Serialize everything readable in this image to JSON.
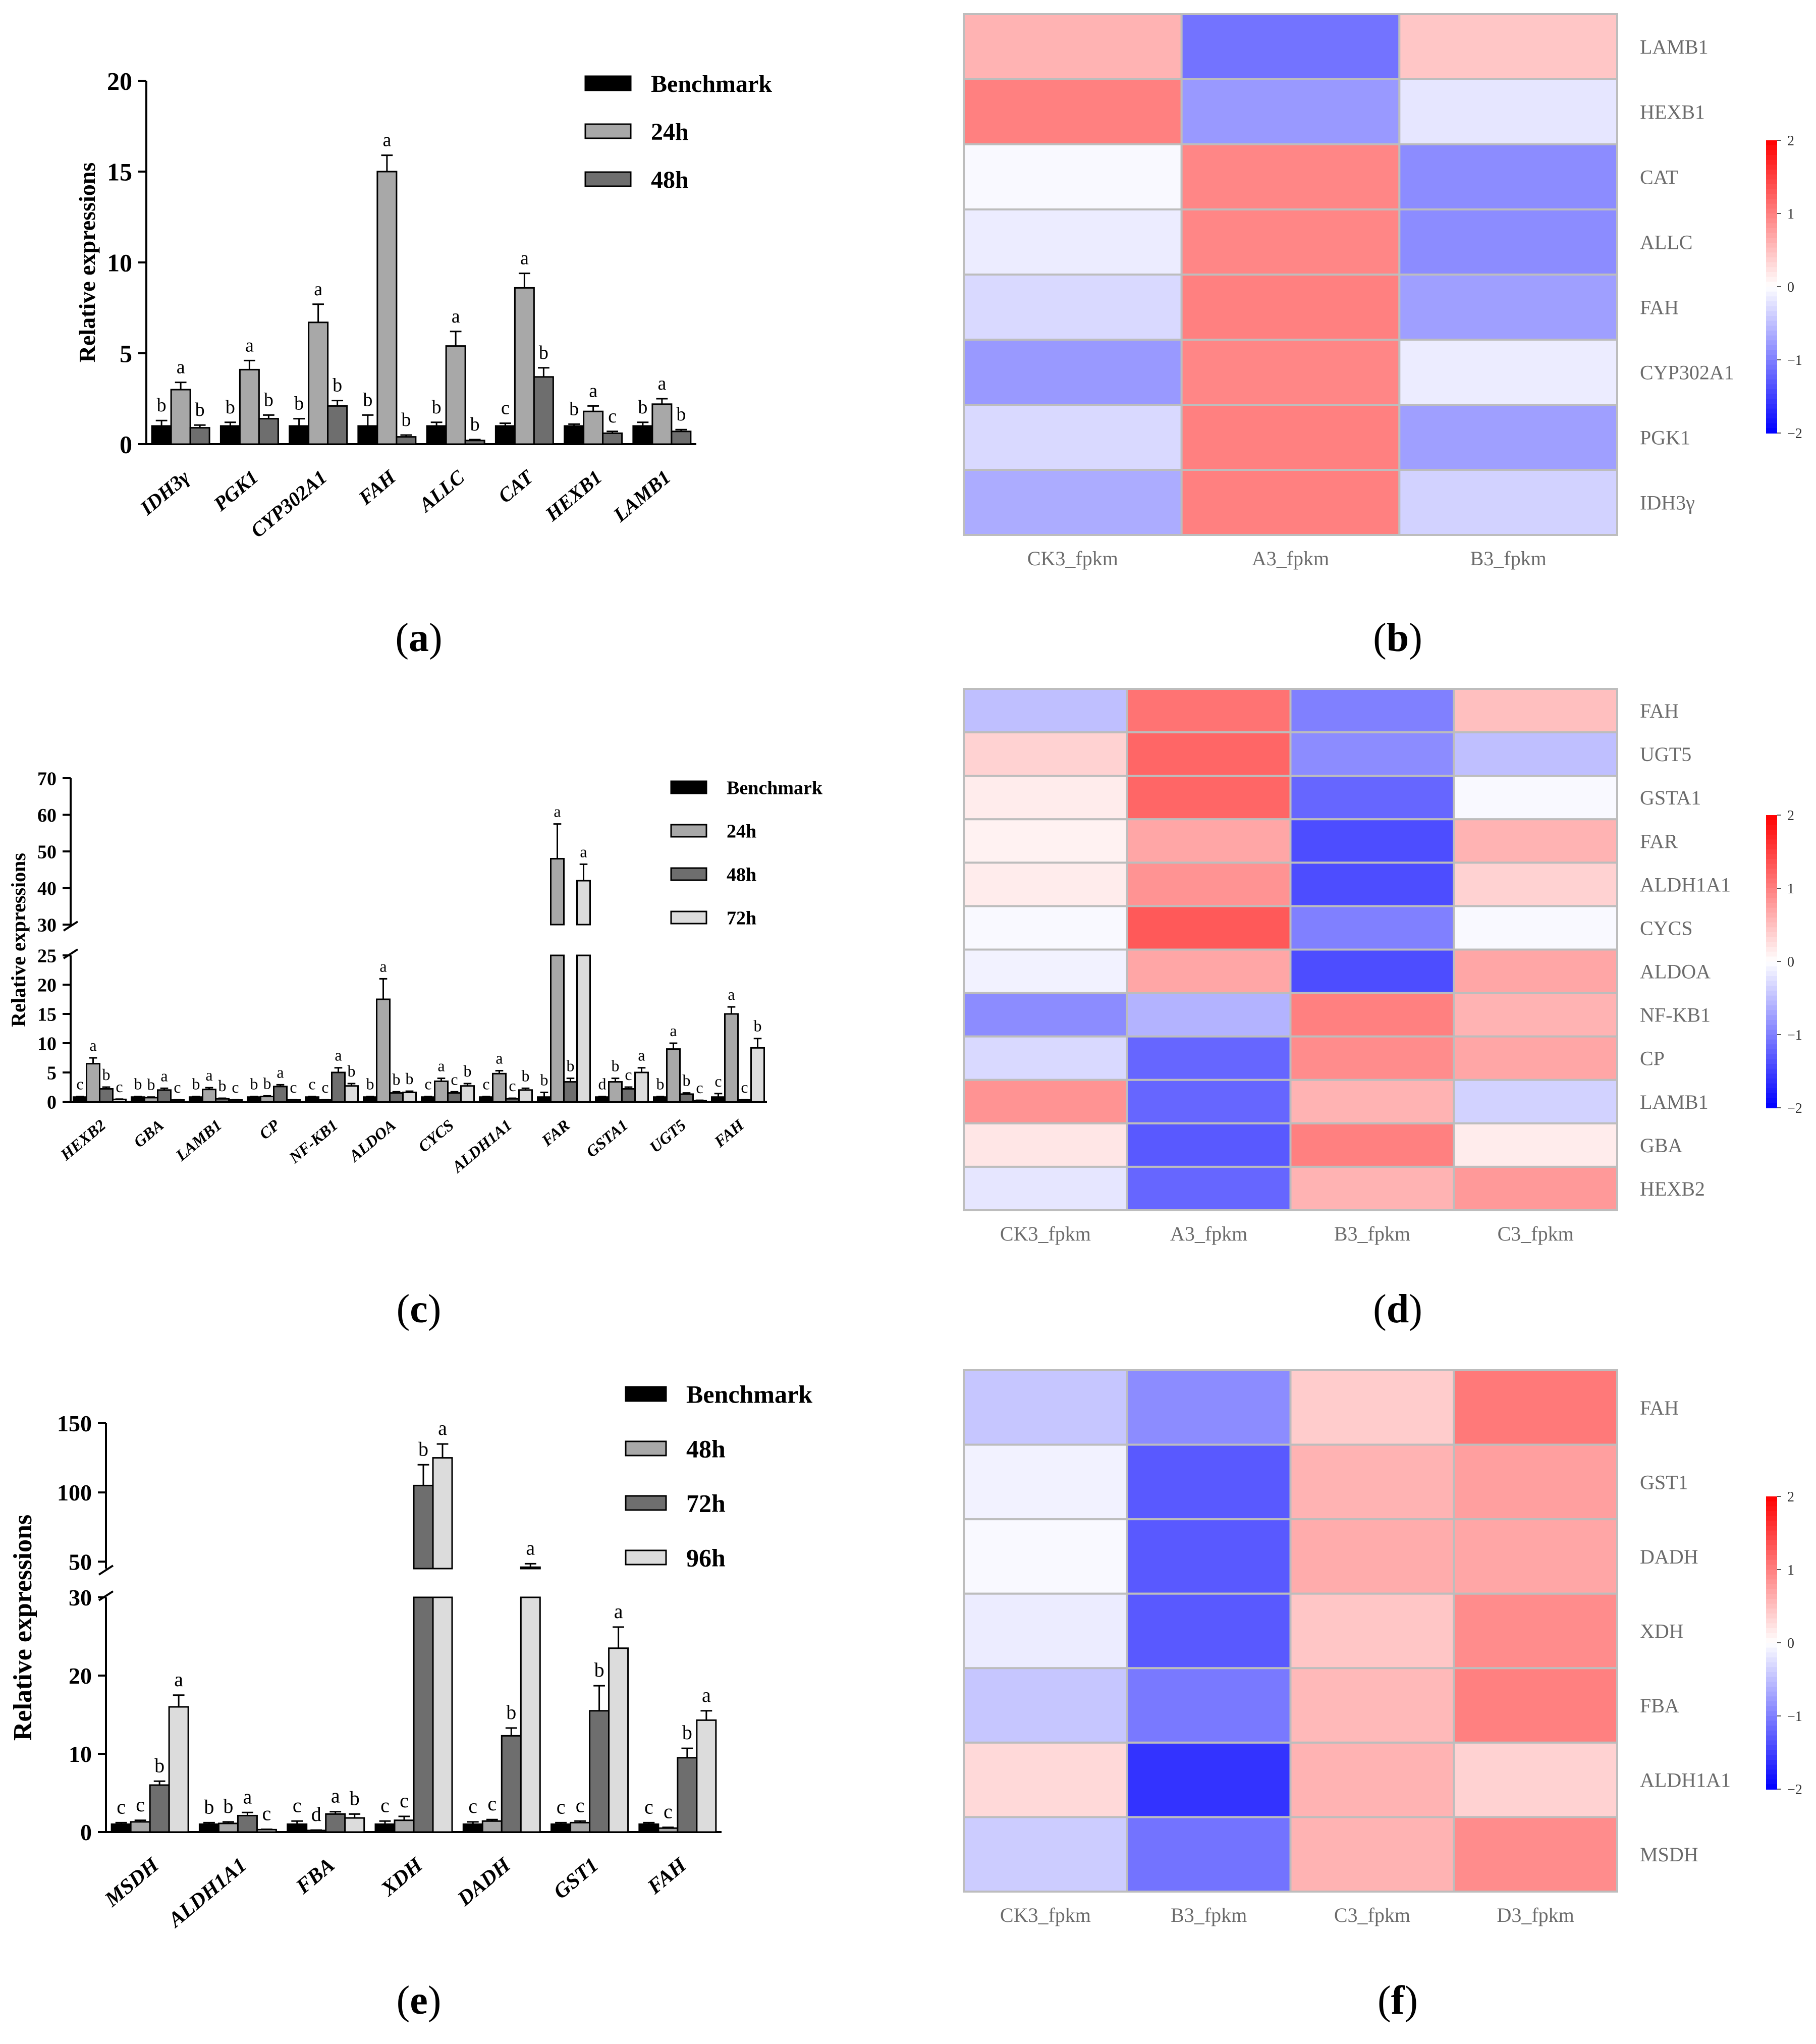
{
  "chart_data": [
    {
      "panel": "(a)",
      "type": "bar",
      "ylabel": "Relative expressions",
      "ylim": [
        0,
        20
      ],
      "yticks": [
        0,
        5,
        10,
        15,
        20
      ],
      "categories": [
        "IDH3γ",
        "PGK1",
        "CYP302A1",
        "FAH",
        "ALLC",
        "CAT",
        "HEXB1",
        "LAMB1"
      ],
      "series": [
        {
          "name": "Benchmark",
          "color": "#000000",
          "values": [
            1,
            1,
            1,
            1,
            1,
            1,
            1,
            1
          ],
          "errors": [
            0.3,
            0.2,
            0.4,
            0.6,
            0.2,
            0.15,
            0.1,
            0.2
          ],
          "letters": [
            "b",
            "b",
            "b",
            "b",
            "b",
            "c",
            "b",
            "b"
          ]
        },
        {
          "name": "24h",
          "color": "#a8a8a8",
          "values": [
            3.0,
            4.1,
            6.7,
            15.0,
            5.4,
            8.6,
            1.8,
            2.2
          ],
          "errors": [
            0.4,
            0.5,
            1.0,
            0.9,
            0.8,
            0.8,
            0.3,
            0.3
          ],
          "letters": [
            "a",
            "a",
            "a",
            "a",
            "a",
            "a",
            "a",
            "a"
          ]
        },
        {
          "name": "48h",
          "color": "#6e6e6e",
          "values": [
            0.9,
            1.4,
            2.1,
            0.4,
            0.2,
            3.7,
            0.6,
            0.7
          ],
          "errors": [
            0.15,
            0.2,
            0.3,
            0.1,
            0.05,
            0.5,
            0.1,
            0.1
          ],
          "letters": [
            "b",
            "b",
            "b",
            "b",
            "b",
            "b",
            "c",
            "b"
          ]
        }
      ],
      "label": "(a)",
      "label_letter": "a"
    },
    {
      "panel": "(b)",
      "type": "heatmap",
      "rows": [
        "LAMB1",
        "HEXB1",
        "CAT",
        "ALLC",
        "FAH",
        "CYP302A1",
        "PGK1",
        "IDH3γ"
      ],
      "cols": [
        "CK3_fpkm",
        "A3_fpkm",
        "B3_fpkm"
      ],
      "values": [
        [
          0.6,
          -1.1,
          0.45
        ],
        [
          1.0,
          -0.8,
          -0.2
        ],
        [
          -0.05,
          0.95,
          -0.9
        ],
        [
          -0.15,
          0.95,
          -0.9
        ],
        [
          -0.3,
          1.0,
          -0.75
        ],
        [
          -0.8,
          0.95,
          -0.15
        ],
        [
          -0.3,
          1.0,
          -0.75
        ],
        [
          -0.65,
          1.0,
          -0.35
        ]
      ],
      "legend_ticks": [
        2,
        1,
        0,
        -1,
        -2
      ],
      "legend_labels": [
        "2",
        "1",
        "0",
        "−1",
        "−2"
      ],
      "label": "(b)",
      "label_letter": "b"
    },
    {
      "panel": "(c)",
      "type": "bar",
      "ylabel": "Relative expressions",
      "y_break": [
        25,
        30
      ],
      "lower_yticks": [
        0,
        5,
        10,
        15,
        20,
        25
      ],
      "upper_yticks": [
        30,
        40,
        50,
        60,
        70
      ],
      "categories": [
        "HEXB2",
        "GBA",
        "LAMB1",
        "CP",
        "NF-KB1",
        "ALDOA",
        "CYCS",
        "ALDH1A1",
        "FAR",
        "GSTA1",
        "UGT5",
        "FAH"
      ],
      "series": [
        {
          "name": "Benchmark",
          "color": "#000000",
          "values": [
            0.8,
            0.8,
            0.8,
            0.8,
            0.8,
            0.8,
            0.8,
            0.8,
            0.8,
            0.8,
            0.8,
            0.8
          ],
          "errors": [
            0.1,
            0.1,
            0.1,
            0.1,
            0.1,
            0.1,
            0.1,
            0.1,
            0.8,
            0.1,
            0.1,
            0.6
          ],
          "letters": [
            "c",
            "b",
            "b",
            "b",
            "c",
            "b",
            "c",
            "c",
            "b",
            "d",
            "b",
            "c"
          ]
        },
        {
          "name": "24h",
          "color": "#a8a8a8",
          "values": [
            6.5,
            0.7,
            2.1,
            0.9,
            0.3,
            17.5,
            3.5,
            4.8,
            48.0,
            3.4,
            9.0,
            15.0
          ],
          "errors": [
            1.0,
            0.1,
            0.3,
            0.1,
            0.05,
            3.5,
            0.5,
            0.5,
            9.5,
            0.6,
            1.0,
            1.2
          ],
          "letters": [
            "a",
            "b",
            "a",
            "b",
            "c",
            "a",
            "a",
            "a",
            "a",
            "b",
            "a",
            "a"
          ]
        },
        {
          "name": "48h",
          "color": "#6e6e6e",
          "values": [
            2.2,
            2.0,
            0.5,
            2.6,
            5.0,
            1.5,
            1.5,
            0.5,
            3.4,
            2.2,
            1.3,
            0.3
          ],
          "errors": [
            0.3,
            0.3,
            0.1,
            0.3,
            0.8,
            0.2,
            0.2,
            0.1,
            0.6,
            0.3,
            0.2,
            0.05
          ],
          "letters": [
            "b",
            "a",
            "b",
            "a",
            "a",
            "b",
            "c",
            "c",
            "b",
            "c",
            "b",
            "c"
          ]
        },
        {
          "name": "72h",
          "color": "#dcdcdc",
          "values": [
            0.4,
            0.3,
            0.3,
            0.3,
            2.7,
            1.6,
            2.7,
            2.0,
            42.0,
            5.0,
            0.2,
            9.2
          ],
          "errors": [
            0.05,
            0.05,
            0.05,
            0.05,
            0.4,
            0.2,
            0.4,
            0.3,
            4.5,
            0.8,
            0.05,
            1.6
          ],
          "letters": [
            "c",
            "c",
            "c",
            "c",
            "b",
            "b",
            "b",
            "b",
            "a",
            "a",
            "c",
            "b"
          ]
        }
      ],
      "label": "(c)",
      "label_letter": "c"
    },
    {
      "panel": "(d)",
      "type": "heatmap",
      "rows": [
        "FAH",
        "UGT5",
        "GSTA1",
        "FAR",
        "ALDH1A1",
        "CYCS",
        "ALDOA",
        "NF-KB1",
        "CP",
        "LAMB1",
        "GBA",
        "HEXB2"
      ],
      "cols": [
        "CK3_fpkm",
        "A3_fpkm",
        "B3_fpkm",
        "C3_fpkm"
      ],
      "values": [
        [
          -0.5,
          1.1,
          -1.0,
          0.5
        ],
        [
          0.35,
          1.2,
          -0.9,
          -0.5
        ],
        [
          0.15,
          1.2,
          -1.2,
          -0.05
        ],
        [
          0.1,
          0.7,
          -1.4,
          0.6
        ],
        [
          0.15,
          0.85,
          -1.4,
          0.35
        ],
        [
          -0.05,
          1.3,
          -1.0,
          -0.05
        ],
        [
          -0.1,
          0.7,
          -1.4,
          0.7
        ],
        [
          -0.9,
          -0.6,
          1.0,
          0.6
        ],
        [
          -0.3,
          -1.2,
          0.9,
          0.7
        ],
        [
          0.85,
          -1.2,
          0.6,
          -0.35
        ],
        [
          0.2,
          -1.3,
          1.0,
          0.15
        ],
        [
          -0.2,
          -1.2,
          0.6,
          0.8
        ]
      ],
      "legend_ticks": [
        2,
        1,
        0,
        -1,
        -2
      ],
      "legend_labels": [
        "2",
        "1",
        "0",
        "−1",
        "−2"
      ],
      "label": "(d)",
      "label_letter": "d"
    },
    {
      "panel": "(e)",
      "type": "bar",
      "ylabel": "Relative expressions",
      "y_break": [
        30,
        45
      ],
      "lower_yticks": [
        0,
        10,
        20,
        30
      ],
      "upper_yticks": [
        50,
        100,
        150
      ],
      "categories": [
        "MSDH",
        "ALDH1A1",
        "FBA",
        "XDH",
        "DADH",
        "GST1",
        "FAH"
      ],
      "series": [
        {
          "name": "Benchmark",
          "color": "#000000",
          "values": [
            1,
            1,
            1,
            1,
            1,
            1,
            1
          ],
          "errors": [
            0.2,
            0.2,
            0.4,
            0.4,
            0.3,
            0.2,
            0.2
          ],
          "letters": [
            "c",
            "b",
            "c",
            "c",
            "c",
            "c",
            "c"
          ]
        },
        {
          "name": "48h",
          "color": "#a8a8a8",
          "values": [
            1.3,
            1.1,
            0.2,
            1.5,
            1.4,
            1.2,
            0.5
          ],
          "errors": [
            0.2,
            0.2,
            0.05,
            0.5,
            0.2,
            0.2,
            0.1
          ],
          "letters": [
            "c",
            "b",
            "d",
            "c",
            "c",
            "c",
            "c"
          ]
        },
        {
          "name": "72h",
          "color": "#6e6e6e",
          "values": [
            6.0,
            2.1,
            2.3,
            105,
            12.3,
            15.5,
            9.5
          ],
          "errors": [
            0.5,
            0.4,
            0.3,
            15,
            1.0,
            3.2,
            1.2
          ],
          "letters": [
            "b",
            "a",
            "a",
            "b",
            "b",
            "b",
            "b"
          ]
        },
        {
          "name": "96h",
          "color": "#dcdcdc",
          "values": [
            16.0,
            0.3,
            1.8,
            125,
            46,
            23.5,
            14.3
          ],
          "errors": [
            1.5,
            0.05,
            0.5,
            10,
            2.5,
            2.7,
            1.2
          ],
          "letters": [
            "a",
            "c",
            "b",
            "a",
            "a",
            "a",
            "a"
          ]
        }
      ],
      "label": "(e)",
      "label_letter": "e"
    },
    {
      "panel": "(f)",
      "type": "heatmap",
      "rows": [
        "FAH",
        "GST1",
        "DADH",
        "XDH",
        "FBA",
        "ALDH1A1",
        "MSDH"
      ],
      "cols": [
        "CK3_fpkm",
        "B3_fpkm",
        "C3_fpkm",
        "D3_fpkm"
      ],
      "values": [
        [
          -0.45,
          -0.9,
          0.4,
          1.05
        ],
        [
          -0.1,
          -1.3,
          0.6,
          0.75
        ],
        [
          -0.05,
          -1.3,
          0.65,
          0.7
        ],
        [
          -0.15,
          -1.3,
          0.45,
          0.9
        ],
        [
          -0.45,
          -1.05,
          0.55,
          1.0
        ],
        [
          0.3,
          -1.6,
          0.6,
          0.35
        ],
        [
          -0.4,
          -1.1,
          0.6,
          0.9
        ]
      ],
      "legend_ticks": [
        2,
        1,
        0,
        -1,
        -2
      ],
      "legend_labels": [
        "2",
        "1",
        "0",
        "−1",
        "−2"
      ],
      "label": "(f)",
      "label_letter": "f"
    }
  ]
}
